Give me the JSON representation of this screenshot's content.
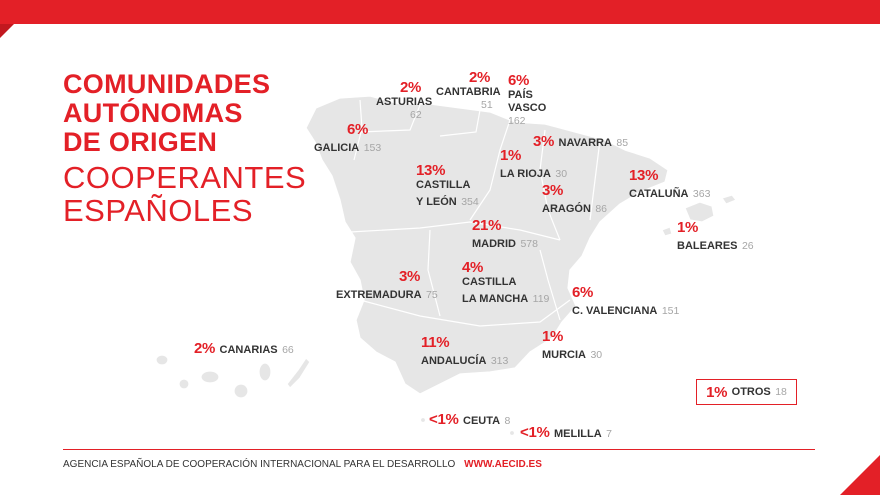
{
  "title": {
    "bold_lines": [
      "COMUNIDADES",
      "AUTÓNOMAS",
      "DE ORIGEN"
    ],
    "light_lines": [
      "COOPERANTES",
      "ESPAÑOLES"
    ]
  },
  "regions": {
    "asturias": {
      "pct": "2%",
      "name": "ASTURIAS",
      "count": "62"
    },
    "cantabria": {
      "pct": "2%",
      "name": "CANTABRIA",
      "count": "51"
    },
    "pais_vasco": {
      "pct": "6%",
      "name1": "PAÍS",
      "name2": "VASCO",
      "count": "162"
    },
    "galicia": {
      "pct": "6%",
      "name": "GALICIA",
      "count": "153"
    },
    "navarra": {
      "pct": "3%",
      "name": "NAVARRA",
      "count": "85"
    },
    "castilla_leon": {
      "pct": "13%",
      "name1": "CASTILLA",
      "name2": "Y LEÓN",
      "count": "354"
    },
    "la_rioja": {
      "pct": "1%",
      "name": "LA RIOJA",
      "count": "30"
    },
    "cataluna": {
      "pct": "13%",
      "name": "CATALUÑA",
      "count": "363"
    },
    "aragon": {
      "pct": "3%",
      "name": "ARAGÓN",
      "count": "86"
    },
    "madrid": {
      "pct": "21%",
      "name": "MADRID",
      "count": "578"
    },
    "baleares": {
      "pct": "1%",
      "name": "BALEARES",
      "count": "26"
    },
    "extremadura": {
      "pct": "3%",
      "name": "EXTREMADURA",
      "count": "75"
    },
    "castilla_mancha": {
      "pct": "4%",
      "name1": "CASTILLA",
      "name2": "LA MANCHA",
      "count": "119"
    },
    "valenciana": {
      "pct": "6%",
      "name": "C. VALENCIANA",
      "count": "151"
    },
    "canarias": {
      "pct": "2%",
      "name": "CANARIAS",
      "count": "66"
    },
    "andalucia": {
      "pct": "11%",
      "name": "ANDALUCÍA",
      "count": "313"
    },
    "murcia": {
      "pct": "1%",
      "name": "MURCIA",
      "count": "30"
    },
    "ceuta": {
      "pct": "<1%",
      "name": "CEUTA",
      "count": "8"
    },
    "melilla": {
      "pct": "<1%",
      "name": "MELILLA",
      "count": "7"
    }
  },
  "otros": {
    "pct": "1%",
    "name": "OTROS",
    "count": "18"
  },
  "footer": {
    "agency": "AGENCIA ESPAÑOLA DE COOPERACIÓN INTERNACIONAL PARA EL DESARROLLO",
    "url": "WWW.AECID.ES"
  },
  "colors": {
    "accent": "#e32027",
    "map_fill": "#e6e6e6"
  }
}
